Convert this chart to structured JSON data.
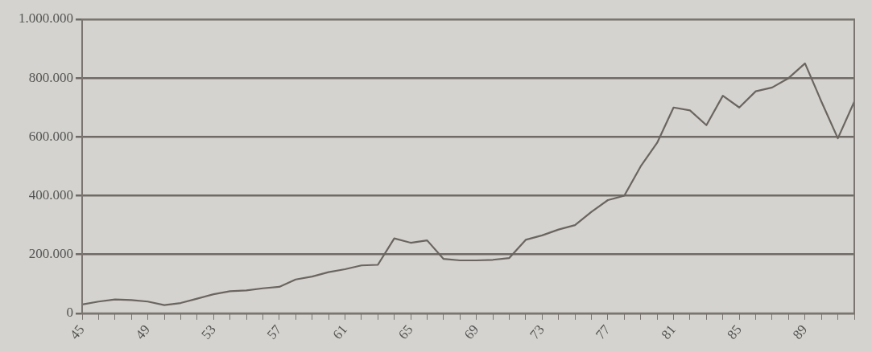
{
  "chart_data": {
    "type": "line",
    "categories": [
      "45",
      null,
      null,
      null,
      "49",
      null,
      null,
      null,
      "53",
      null,
      null,
      null,
      "57",
      null,
      null,
      null,
      "61",
      null,
      null,
      null,
      "65",
      null,
      null,
      null,
      "69",
      null,
      null,
      null,
      "73",
      null,
      null,
      null,
      "77",
      null,
      null,
      null,
      "81",
      null,
      null,
      null,
      "85",
      null,
      null,
      null,
      "89",
      null,
      null,
      null
    ],
    "series": [
      {
        "color": "#6b6560",
        "values": [
          30000,
          40000,
          47000,
          45000,
          40000,
          28000,
          35000,
          50000,
          65000,
          75000,
          78000,
          85000,
          90000,
          115000,
          125000,
          140000,
          150000,
          163000,
          165000,
          255000,
          240000,
          248000,
          185000,
          180000,
          180000,
          182000,
          188000,
          250000,
          265000,
          285000,
          300000,
          345000,
          385000,
          400000,
          500000,
          580000,
          700000,
          690000,
          640000,
          740000,
          700000,
          755000,
          768000,
          800000,
          850000,
          720000,
          595000,
          720000
        ]
      }
    ],
    "ylim": [
      0,
      1000000
    ],
    "yticks": [
      {
        "value": 0,
        "label": "0"
      },
      {
        "value": 200000,
        "label": "200.000"
      },
      {
        "value": 400000,
        "label": "400.000"
      },
      {
        "value": 600000,
        "label": "600.000"
      },
      {
        "value": 800000,
        "label": "800.000"
      },
      {
        "value": 1000000,
        "label": "1.000.000"
      }
    ],
    "grid": "y",
    "legend": false,
    "marker": "none",
    "line_style": "solid"
  }
}
